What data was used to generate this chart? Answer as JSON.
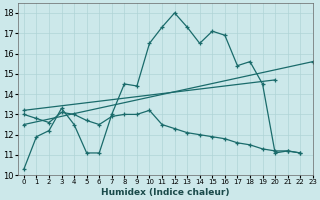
{
  "xlabel": "Humidex (Indice chaleur)",
  "background_color": "#cce8ea",
  "grid_color": "#b0d4d6",
  "line_color": "#1a6b6b",
  "xlim": [
    -0.5,
    23
  ],
  "ylim": [
    10,
    18.5
  ],
  "xticks": [
    0,
    1,
    2,
    3,
    4,
    5,
    6,
    7,
    8,
    9,
    10,
    11,
    12,
    13,
    14,
    15,
    16,
    17,
    18,
    19,
    20,
    21,
    22,
    23
  ],
  "yticks": [
    10,
    11,
    12,
    13,
    14,
    15,
    16,
    17,
    18
  ],
  "series1_x": [
    0,
    1,
    2,
    3,
    4,
    5,
    6,
    7,
    8,
    9,
    10,
    11,
    12,
    13,
    14,
    15,
    16,
    17,
    18,
    19,
    20,
    21,
    22
  ],
  "series1_y": [
    10.3,
    11.9,
    12.2,
    13.3,
    12.5,
    11.1,
    11.1,
    13.0,
    14.5,
    14.4,
    16.5,
    17.3,
    18.0,
    17.3,
    16.5,
    17.1,
    16.9,
    15.4,
    15.6,
    14.5,
    11.1,
    11.2,
    11.1
  ],
  "series2_x": [
    0,
    23
  ],
  "series2_y": [
    12.5,
    15.6
  ],
  "series3_x": [
    0,
    20
  ],
  "series3_y": [
    13.2,
    14.7
  ],
  "series4_x": [
    0,
    1,
    2,
    3,
    4,
    5,
    6,
    7,
    8,
    9,
    10,
    11,
    12,
    13,
    14,
    15,
    16,
    17,
    18,
    19,
    20,
    21,
    22
  ],
  "series4_y": [
    13.0,
    12.8,
    12.6,
    13.1,
    13.0,
    12.7,
    12.5,
    12.9,
    13.0,
    13.0,
    13.2,
    12.5,
    12.3,
    12.1,
    12.0,
    11.9,
    11.8,
    11.6,
    11.5,
    11.3,
    11.2,
    11.2,
    11.1
  ]
}
